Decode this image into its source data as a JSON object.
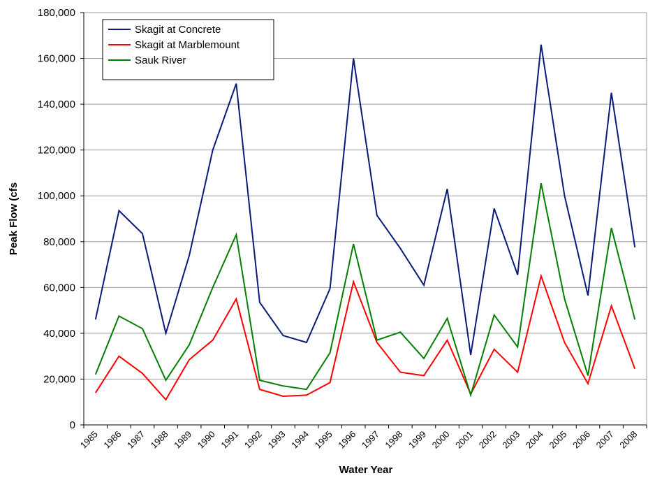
{
  "chart_data": {
    "type": "line",
    "x_label": "Water Year",
    "y_label": "Peak Flow (cfs",
    "categories": [
      "1985",
      "1986",
      "1987",
      "1988",
      "1989",
      "1990",
      "1991",
      "1992",
      "1993",
      "1994",
      "1995",
      "1996",
      "1997",
      "1998",
      "1999",
      "2000",
      "2001",
      "2002",
      "2003",
      "2004",
      "2005",
      "2006",
      "2007",
      "2008"
    ],
    "series": [
      {
        "name": "Skagit at Concrete",
        "color": "#0a1a7a",
        "values": [
          46000,
          93500,
          83500,
          40000,
          74000,
          120000,
          149000,
          53500,
          39000,
          36000,
          59500,
          160000,
          91500,
          77000,
          61000,
          103000,
          30500,
          94500,
          65500,
          166000,
          100000,
          56500,
          145000,
          77500
        ]
      },
      {
        "name": "Skagit at Marblemount",
        "color": "#ff0000",
        "values": [
          14000,
          30000,
          22500,
          11000,
          28500,
          37000,
          55000,
          15500,
          12500,
          13000,
          18500,
          62500,
          36000,
          23000,
          21500,
          37000,
          13500,
          33000,
          23000,
          65000,
          36000,
          18000,
          52000,
          24500
        ]
      },
      {
        "name": "Sauk River",
        "color": "#008000",
        "values": [
          22000,
          47500,
          42000,
          19500,
          35000,
          60000,
          83000,
          19500,
          17000,
          15500,
          31500,
          79000,
          37000,
          40500,
          29000,
          46500,
          13000,
          48000,
          34000,
          105500,
          55000,
          21500,
          86000,
          46000
        ]
      }
    ],
    "ylim": [
      0,
      180000
    ],
    "yticks": [
      0,
      {
        "value": 20000,
        "label": "20,000"
      },
      {
        "value": 40000,
        "label": "40,000"
      },
      {
        "value": 60000,
        "label": "60,000"
      },
      {
        "value": 80000,
        "label": "80,000"
      },
      {
        "value": 100000,
        "label": "100,000"
      },
      {
        "value": 120000,
        "label": "120,000"
      },
      {
        "value": 140000,
        "label": "140,000"
      },
      {
        "value": 160000,
        "label": "160,000"
      },
      {
        "value": 180000,
        "label": "180,000"
      }
    ],
    "grid": true,
    "legend": "upper-left"
  }
}
